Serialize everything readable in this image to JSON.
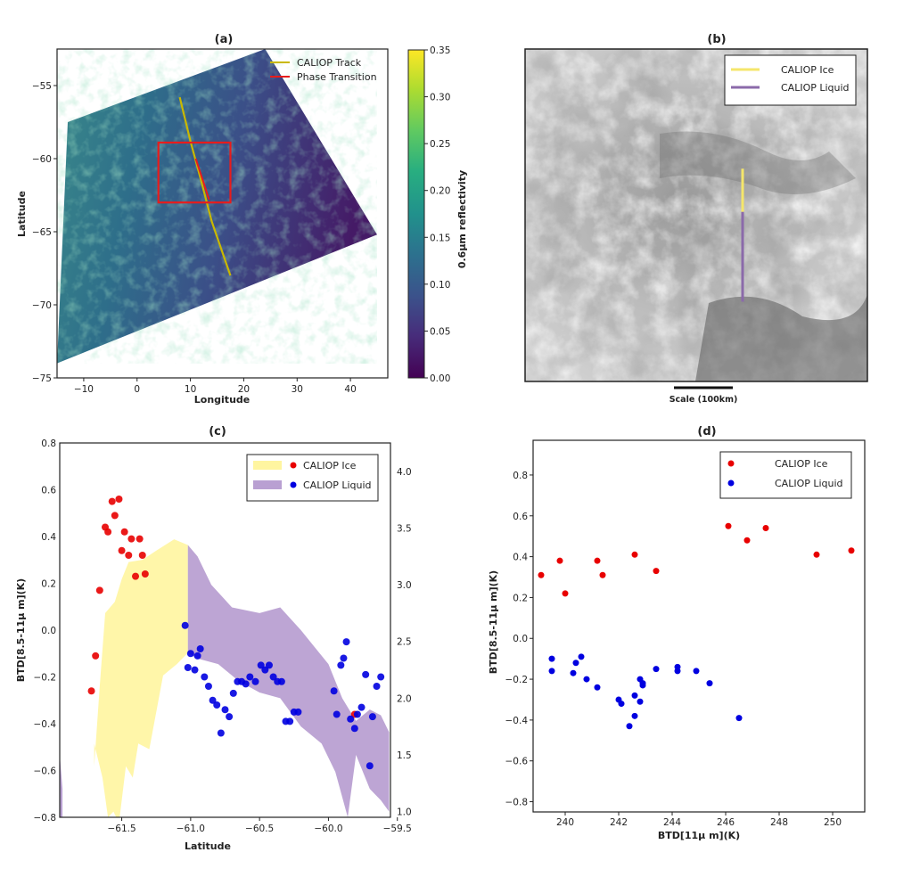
{
  "chart_data": [
    {
      "type": "heatmap",
      "panel": "(a)",
      "xlabel": "Longitude",
      "ylabel": "Latitude",
      "xlim": [
        -15,
        47
      ],
      "ylim": [
        -75,
        -52.5
      ],
      "xticks": [
        -10,
        0,
        10,
        20,
        30,
        40
      ],
      "yticks": [
        -55,
        -60,
        -65,
        -70,
        -75
      ],
      "colorbar": {
        "label": "0.6μm reflectivity",
        "min": 0.0,
        "max": 0.35,
        "ticks": [
          "0.00",
          "0.05",
          "0.10",
          "0.15",
          "0.20",
          "0.25",
          "0.30",
          "0.35"
        ]
      },
      "swath_corners": [
        [
          -13,
          -57.5
        ],
        [
          24,
          -52.5
        ],
        [
          45,
          -65.2
        ],
        [
          -15,
          -74
        ]
      ],
      "caliop_track": [
        [
          8,
          -55.8
        ],
        [
          10,
          -58.8
        ],
        [
          12,
          -61.5
        ],
        [
          14,
          -64.3
        ],
        [
          17.5,
          -68
        ]
      ],
      "phase_transition": [
        [
          11,
          -60
        ],
        [
          13.5,
          -62.8
        ]
      ],
      "zoom_box": {
        "lon": [
          4,
          17.5
        ],
        "lat": [
          -58.9,
          -63
        ]
      },
      "legend": [
        "CALIOP Track",
        "Phase Transition"
      ],
      "legend_colors": [
        "#c9b800",
        "#e81c1c"
      ]
    },
    {
      "type": "image",
      "panel": "(b)",
      "legend": [
        "CALIOP Ice",
        "CALIOP Liquid"
      ],
      "legend_colors": [
        "#f5e66b",
        "#8b6aaa"
      ],
      "scale_label": "Scale (100km)",
      "ice_track_fraction": [
        0.36,
        0.49
      ],
      "liquid_track_fraction": [
        0.49,
        0.76
      ]
    },
    {
      "type": "scatter",
      "panel": "(c)",
      "xlabel": "Latitude",
      "ylabel": "BTD[8.5-11μ m](K)",
      "xlim": [
        -61.95,
        -59.55
      ],
      "ylim": [
        -0.8,
        0.8
      ],
      "xticks": [
        -61.5,
        -61.0,
        -60.5,
        -60.0,
        -59.5
      ],
      "yticks": [
        -0.8,
        -0.6,
        -0.4,
        -0.2,
        0.0,
        0.2,
        0.4,
        0.6,
        0.8
      ],
      "y2lim": [
        0.95,
        4.25
      ],
      "y2ticks": [
        1.0,
        1.5,
        2.0,
        2.5,
        3.0,
        3.5,
        4.0
      ],
      "legend": [
        "CALIOP Ice",
        "CALIOP Liquid"
      ],
      "ice_points": [
        [
          -61.72,
          -0.26
        ],
        [
          -61.69,
          -0.11
        ],
        [
          -61.66,
          0.17
        ],
        [
          -61.62,
          0.44
        ],
        [
          -61.6,
          0.42
        ],
        [
          -61.57,
          0.55
        ],
        [
          -61.55,
          0.49
        ],
        [
          -61.52,
          0.56
        ],
        [
          -61.5,
          0.34
        ],
        [
          -61.48,
          0.42
        ],
        [
          -61.45,
          0.32
        ],
        [
          -61.43,
          0.39
        ],
        [
          -61.4,
          0.23
        ],
        [
          -61.37,
          0.39
        ],
        [
          -61.35,
          0.32
        ],
        [
          -61.33,
          0.24
        ],
        [
          -59.81,
          -0.36
        ]
      ],
      "liquid_points": [
        [
          -61.04,
          0.02
        ],
        [
          -61.02,
          -0.16
        ],
        [
          -61.0,
          -0.1
        ],
        [
          -60.97,
          -0.17
        ],
        [
          -60.95,
          -0.11
        ],
        [
          -60.93,
          -0.08
        ],
        [
          -60.9,
          -0.2
        ],
        [
          -60.87,
          -0.24
        ],
        [
          -60.84,
          -0.3
        ],
        [
          -60.81,
          -0.32
        ],
        [
          -60.78,
          -0.44
        ],
        [
          -60.75,
          -0.34
        ],
        [
          -60.72,
          -0.37
        ],
        [
          -60.69,
          -0.27
        ],
        [
          -60.66,
          -0.22
        ],
        [
          -60.63,
          -0.22
        ],
        [
          -60.6,
          -0.23
        ],
        [
          -60.57,
          -0.2
        ],
        [
          -60.53,
          -0.22
        ],
        [
          -60.49,
          -0.15
        ],
        [
          -60.46,
          -0.17
        ],
        [
          -60.43,
          -0.15
        ],
        [
          -60.4,
          -0.2
        ],
        [
          -60.37,
          -0.22
        ],
        [
          -60.34,
          -0.22
        ],
        [
          -60.31,
          -0.39
        ],
        [
          -60.28,
          -0.39
        ],
        [
          -60.25,
          -0.35
        ],
        [
          -60.22,
          -0.35
        ],
        [
          -59.96,
          -0.26
        ],
        [
          -59.94,
          -0.36
        ],
        [
          -59.91,
          -0.15
        ],
        [
          -59.89,
          -0.12
        ],
        [
          -59.87,
          -0.05
        ],
        [
          -59.84,
          -0.38
        ],
        [
          -59.81,
          -0.42
        ],
        [
          -59.79,
          -0.36
        ],
        [
          -59.76,
          -0.33
        ],
        [
          -59.73,
          -0.19
        ],
        [
          -59.7,
          -0.58
        ],
        [
          -59.68,
          -0.37
        ],
        [
          -59.65,
          -0.24
        ],
        [
          -59.62,
          -0.2
        ]
      ]
    },
    {
      "type": "scatter",
      "panel": "(d)",
      "xlabel": "BTD[11μ m](K)",
      "ylabel": "BTD[8.5-11μ m](K)",
      "xlim": [
        238.8,
        251.2
      ],
      "ylim": [
        -0.85,
        0.97
      ],
      "xticks": [
        240,
        242,
        244,
        246,
        248,
        250
      ],
      "yticks": [
        -0.8,
        -0.6,
        -0.4,
        -0.2,
        0.0,
        0.2,
        0.4,
        0.6,
        0.8
      ],
      "legend": [
        "CALIOP Ice",
        "CALIOP Liquid"
      ],
      "ice_points": [
        [
          239.1,
          0.31
        ],
        [
          239.8,
          0.38
        ],
        [
          240.0,
          0.22
        ],
        [
          241.2,
          0.38
        ],
        [
          241.4,
          0.31
        ],
        [
          242.6,
          0.41
        ],
        [
          243.4,
          0.33
        ],
        [
          246.1,
          0.55
        ],
        [
          246.8,
          0.48
        ],
        [
          247.5,
          0.54
        ],
        [
          249.4,
          0.41
        ],
        [
          250.7,
          0.43
        ]
      ],
      "liquid_points": [
        [
          239.5,
          -0.1
        ],
        [
          239.5,
          -0.16
        ],
        [
          240.3,
          -0.17
        ],
        [
          240.4,
          -0.12
        ],
        [
          240.6,
          -0.09
        ],
        [
          240.8,
          -0.2
        ],
        [
          241.2,
          -0.24
        ],
        [
          242.0,
          -0.3
        ],
        [
          242.1,
          -0.32
        ],
        [
          242.4,
          -0.43
        ],
        [
          242.6,
          -0.38
        ],
        [
          242.6,
          -0.28
        ],
        [
          242.8,
          -0.2
        ],
        [
          242.8,
          -0.31
        ],
        [
          242.9,
          -0.22
        ],
        [
          242.9,
          -0.23
        ],
        [
          243.4,
          -0.15
        ],
        [
          244.2,
          -0.14
        ],
        [
          244.2,
          -0.16
        ],
        [
          244.9,
          -0.16
        ],
        [
          245.4,
          -0.22
        ],
        [
          246.5,
          -0.39
        ]
      ]
    }
  ]
}
